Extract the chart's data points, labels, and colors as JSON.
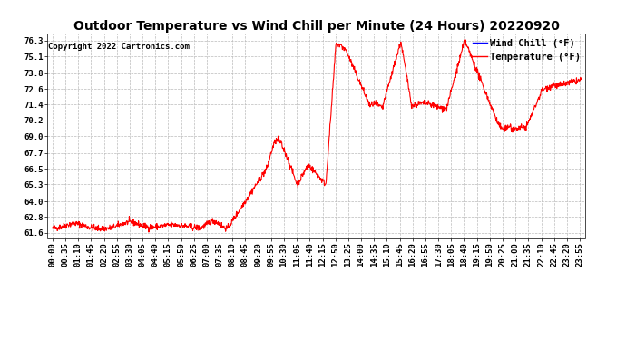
{
  "title": "Outdoor Temperature vs Wind Chill per Minute (24 Hours) 20220920",
  "copyright": "Copyright 2022 Cartronics.com",
  "legend_wind_chill": "Wind Chill (°F)",
  "legend_temperature": "Temperature (°F)",
  "wind_chill_color": "blue",
  "temperature_color": "red",
  "background_color": "white",
  "grid_color": "#bbbbbb",
  "yticks": [
    61.6,
    62.8,
    64.0,
    65.3,
    66.5,
    67.7,
    69.0,
    70.2,
    71.4,
    72.6,
    73.8,
    75.1,
    76.3
  ],
  "ylim": [
    61.2,
    76.8
  ],
  "title_fontsize": 10,
  "copyright_fontsize": 6.5,
  "legend_fontsize": 7.5,
  "tick_fontsize": 6.5,
  "x_tick_interval_minutes": 35,
  "total_minutes": 1440,
  "curve_lw": 0.8
}
